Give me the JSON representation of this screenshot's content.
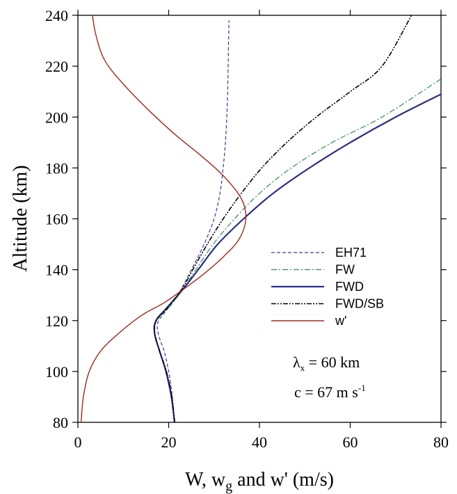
{
  "chart_data": {
    "type": "line",
    "title": "",
    "xlabel": {
      "main": "W, w",
      "sub": "g",
      "rest": " and w' (m/s)"
    },
    "ylabel": "Altitude (km)",
    "xlim": [
      0,
      80
    ],
    "ylim": [
      80,
      240
    ],
    "xticks": [
      0,
      20,
      40,
      60,
      80
    ],
    "xtick_labels": [
      "0",
      "20",
      "40",
      "60",
      "80"
    ],
    "yticks": [
      80,
      100,
      120,
      140,
      160,
      180,
      200,
      220,
      240
    ],
    "ytick_labels": [
      "80",
      "100",
      "120",
      "140",
      "160",
      "180",
      "200",
      "220",
      "240"
    ],
    "grid": false,
    "legend_position": "right",
    "series": [
      {
        "name": "EH71",
        "color": "#3a3a9e",
        "dash": "5,3",
        "width": 1.2,
        "x": [
          21.2,
          20.8,
          20.0,
          19.0,
          18.0,
          17.5,
          17.8,
          19.5,
          22.0,
          25.0,
          27.8,
          30.0,
          31.3,
          32.0,
          32.5,
          32.8,
          33.0,
          33.1,
          33.2,
          33.3
        ],
        "y": [
          80,
          90,
          100,
          108,
          113,
          117,
          120,
          124,
          130,
          140,
          150,
          160,
          170,
          180,
          190,
          200,
          210,
          220,
          230,
          238
        ]
      },
      {
        "name": "FW",
        "color": "#2e8b57",
        "dash": "8,3,2,3",
        "width": 1.2,
        "x": [
          21.3,
          20.7,
          19.5,
          18.0,
          16.9,
          17.3,
          20.0,
          23.0,
          26.0,
          29.8,
          34.5,
          40.0,
          47.0,
          56.0,
          67.0,
          80.0
        ],
        "y": [
          80,
          90,
          100,
          108,
          115,
          120,
          125,
          132,
          140,
          150,
          160,
          170,
          180,
          190,
          200,
          215
        ]
      },
      {
        "name": "FWD",
        "color": "#2b2b87",
        "dash": "",
        "width": 2.2,
        "x": [
          21.3,
          20.6,
          19.4,
          18.0,
          16.9,
          17.2,
          19.6,
          23.0,
          26.5,
          30.8,
          36.5,
          43.0,
          51.0,
          60.0,
          70.0,
          80.0
        ],
        "y": [
          80,
          90,
          100,
          108,
          115,
          120,
          125,
          132,
          140,
          150,
          160,
          170,
          180,
          190,
          200,
          209
        ]
      },
      {
        "name": "FWD/SB",
        "color": "#000000",
        "dash": "7,2,2,2,2,2",
        "width": 1.6,
        "x": [
          21.3,
          20.7,
          19.5,
          18.0,
          16.9,
          17.3,
          19.7,
          22.8,
          25.3,
          28.5,
          32.0,
          36.0,
          40.5,
          46.0,
          52.5,
          60.0,
          67.0,
          73.5
        ],
        "y": [
          80,
          90,
          100,
          108,
          115,
          120,
          125,
          132,
          140,
          150,
          160,
          170,
          180,
          190,
          200,
          210,
          220,
          240
        ]
      },
      {
        "name": "w'",
        "color": "#a0281e",
        "dash": "",
        "width": 1.4,
        "x": [
          0.7,
          1.2,
          2.5,
          5.0,
          9.0,
          14.0,
          19.0,
          23.0,
          27.5,
          32.0,
          35.5,
          37.0,
          36.0,
          32.0,
          27.0,
          21.5,
          16.0,
          10.5,
          6.0,
          4.0,
          3.2
        ],
        "y": [
          80,
          90,
          100,
          108,
          115,
          122,
          127,
          132,
          138,
          145,
          152,
          160,
          168,
          177,
          185,
          193,
          202,
          212,
          222,
          232,
          240
        ]
      }
    ],
    "annotations": [
      {
        "id": "lambda",
        "symbol": "λ",
        "sub": "x",
        "text": " = 60 km"
      },
      {
        "id": "c",
        "text": "c = 67 m s",
        "sup": "-1"
      }
    ]
  }
}
